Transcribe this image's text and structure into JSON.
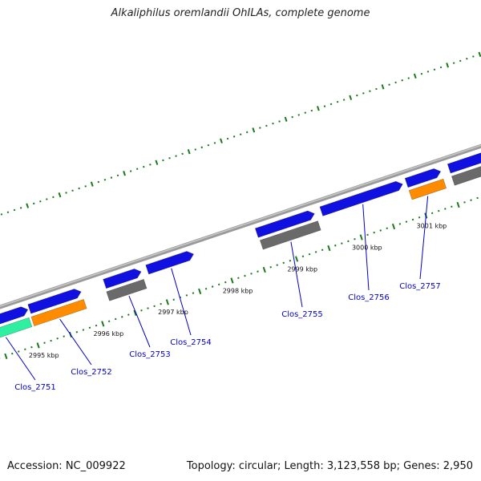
{
  "title": "Alkaliphilus oremlandii OhILAs, complete genome",
  "footer": {
    "accession": "Accession: NC_009922",
    "topology": "Topology: circular; Length: 3,123,558 bp; Genes: 2,950"
  },
  "colors": {
    "backbone": "#8c8c8c",
    "tick": "#1a7a1a",
    "forward_gene": "#1010e0",
    "reverse_gray": "#6a6a6a",
    "reverse_orange": "#ff8c00",
    "reverse_teal": "#2ff0a0",
    "label": "#0000cc"
  },
  "tick_labels": [
    "2995 kbp",
    "2996 kbp",
    "2997 kbp",
    "2998 kbp",
    "2999 kbp",
    "3000 kbp",
    "3001 kbp"
  ],
  "gene_labels": [
    "Clos_2751",
    "Clos_2752",
    "Clos_2753",
    "Clos_2754",
    "Clos_2755",
    "Clos_2756",
    "Clos_2757"
  ]
}
